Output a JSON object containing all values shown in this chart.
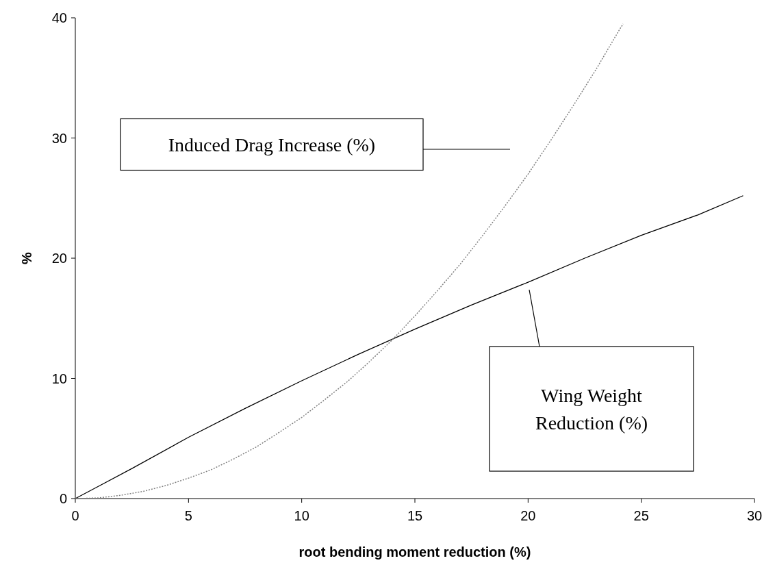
{
  "chart_data": {
    "type": "line",
    "xlabel": "root bending moment reduction (%)",
    "ylabel": "%",
    "xlim": [
      0,
      30
    ],
    "xticks": [
      0,
      5,
      10,
      15,
      20,
      25,
      30
    ],
    "ylim": [
      0,
      40
    ],
    "yticks": [
      0,
      10,
      20,
      30,
      40
    ],
    "grid": false,
    "series": [
      {
        "color": "#000000",
        "line_style": "solid",
        "x": [
          0,
          1,
          2.5,
          5,
          7.5,
          10,
          12.5,
          15,
          17.5,
          20,
          22.5,
          25,
          27.5,
          29.5
        ],
        "values": [
          0,
          1,
          2.5,
          5.1,
          7.5,
          9.8,
          12,
          14.1,
          16.1,
          18,
          20,
          21.9,
          23.6,
          25.2
        ]
      },
      {
        "color": "#808080",
        "line_style": "dotted",
        "x": [
          0,
          1,
          2,
          3,
          4,
          5,
          6,
          7,
          8,
          9,
          10,
          11,
          12,
          13,
          14,
          15,
          16,
          17,
          18,
          19,
          20,
          21,
          22,
          23,
          24,
          24.2
        ],
        "values": [
          0,
          0.05,
          0.27,
          0.6,
          1.08,
          1.7,
          2.4,
          3.3,
          4.3,
          5.5,
          6.75,
          8.2,
          9.7,
          11.4,
          13.2,
          15.2,
          17.3,
          19.5,
          21.9,
          24.4,
          27,
          29.8,
          32.7,
          35.7,
          38.9,
          39.5
        ]
      }
    ],
    "annotations": [
      "Induced Drag Increase (%)",
      "Wing Weight Reduction (%)"
    ]
  }
}
